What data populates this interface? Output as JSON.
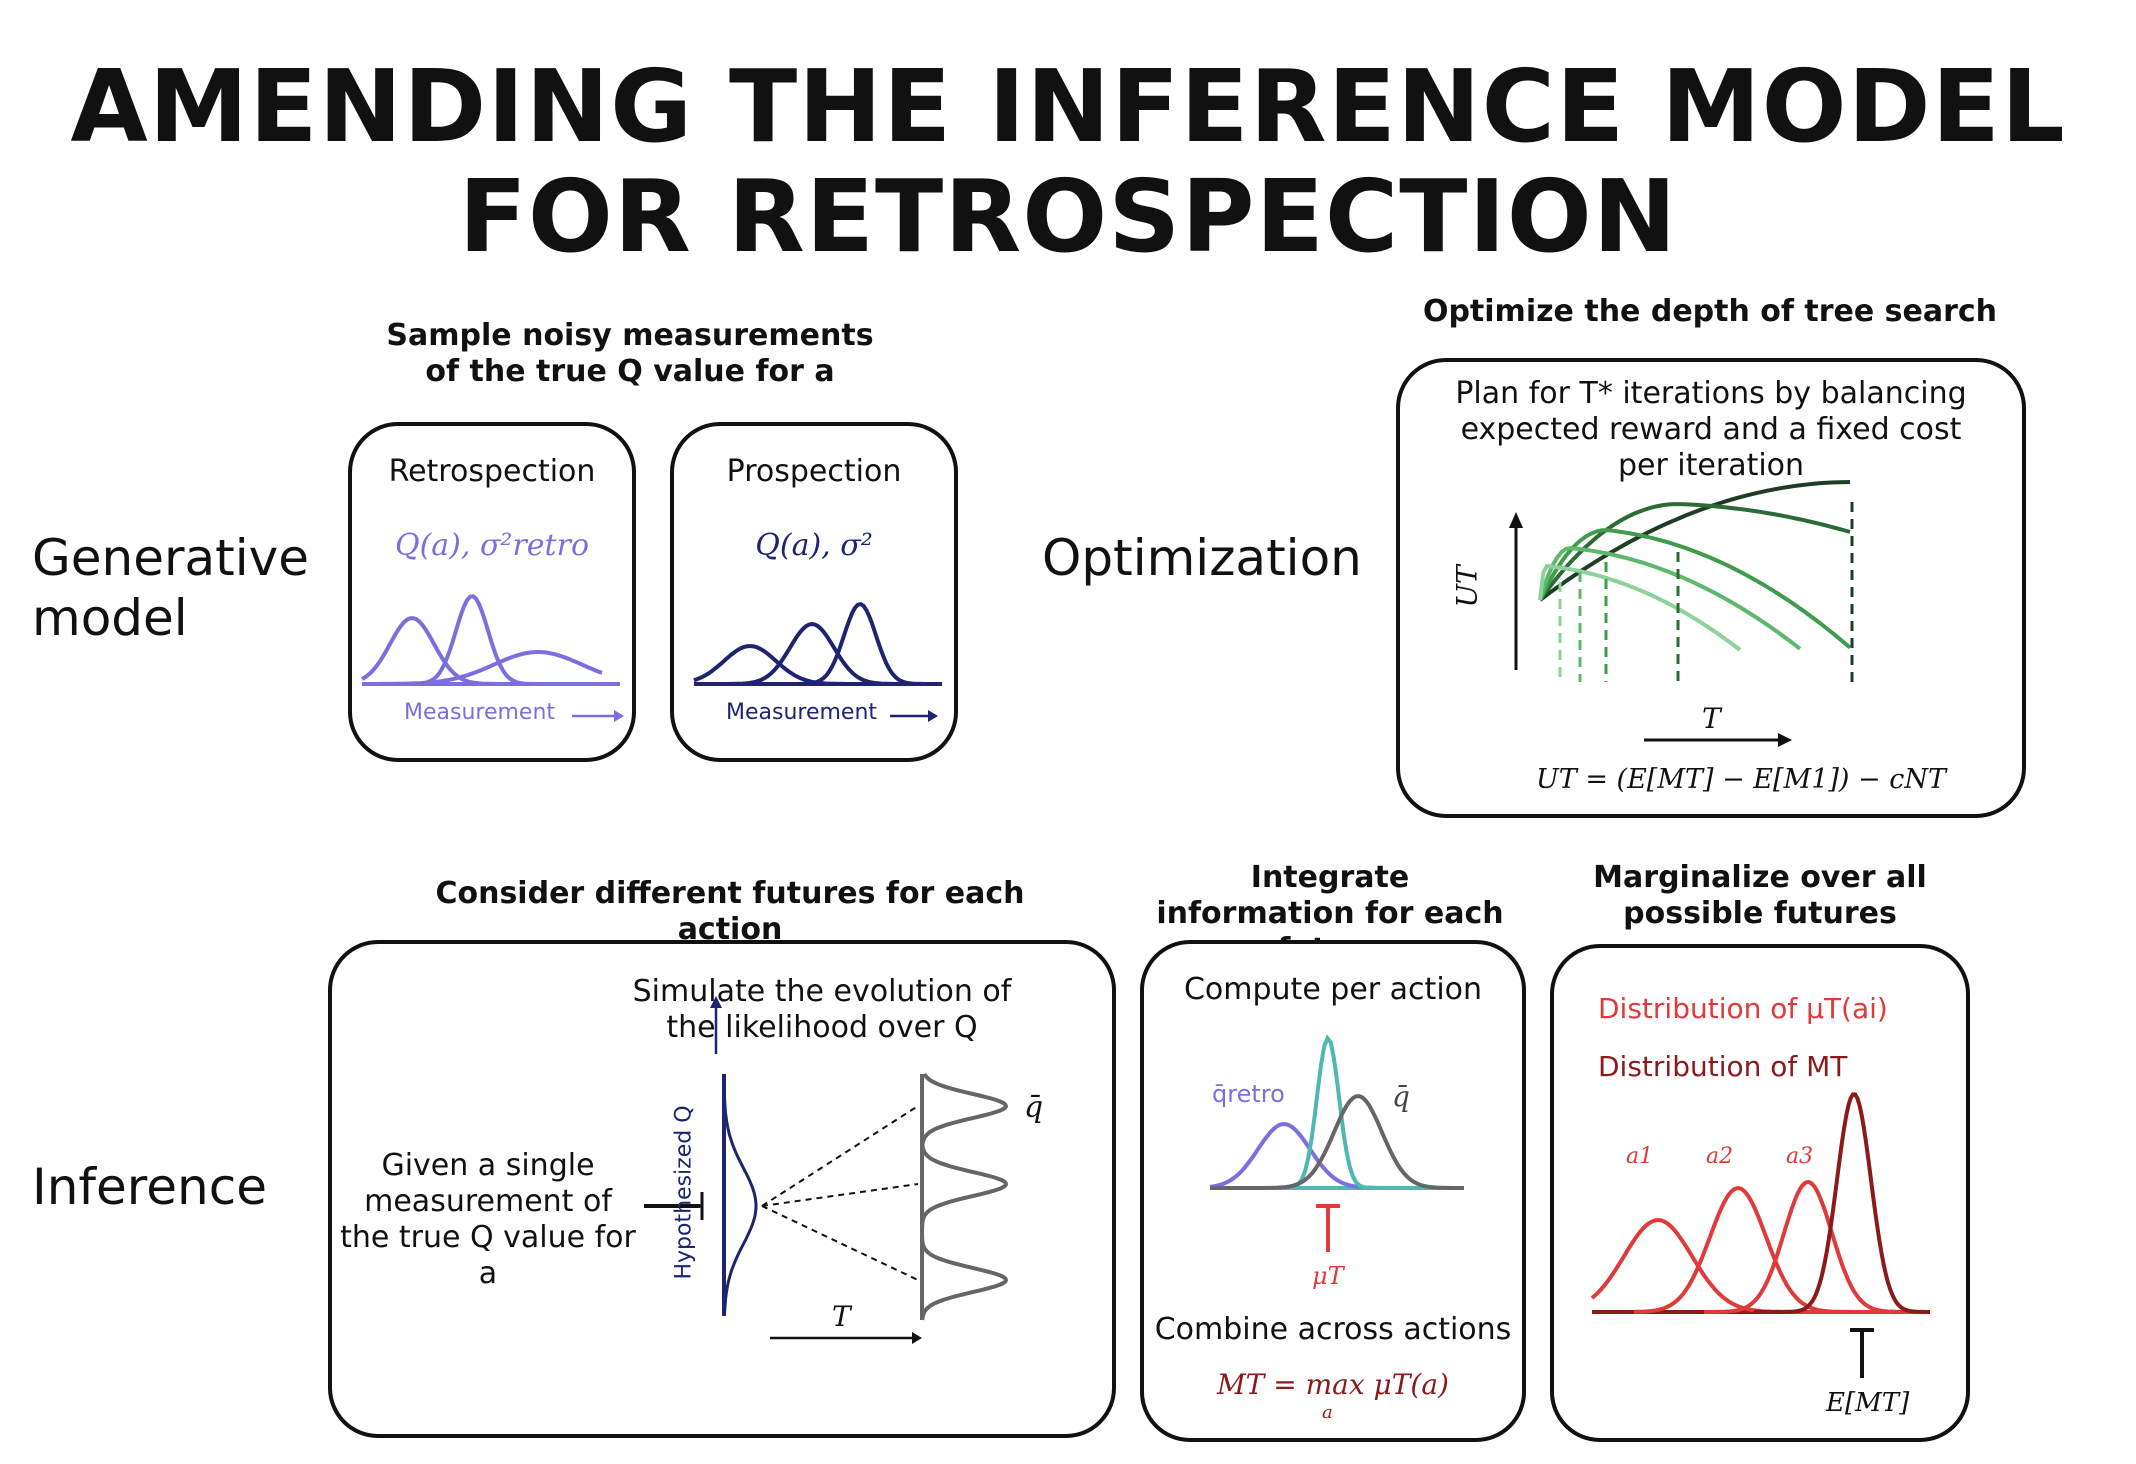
{
  "title": "AMENDING THE INFERENCE MODEL FOR RETROSPECTION",
  "row_labels": {
    "generative": "Generative model",
    "optimization": "Optimization",
    "inference": "Inference"
  },
  "sample_header": "Sample noisy measurements of the true Q value for a",
  "retrospection": {
    "label": "Retrospection",
    "formula": "Q(a), σ²retro",
    "axis": "Measurement",
    "color": "#7b6fe0"
  },
  "prospection": {
    "label": "Prospection",
    "formula": "Q(a), σ²",
    "axis": "Measurement",
    "color": "#1d2470"
  },
  "optimize": {
    "header": "Optimize the depth of tree search",
    "text": "Plan for T* iterations by balancing expected reward and a fixed cost per iteration",
    "y_axis": "UT",
    "x_axis": "T",
    "equation": "UT = (E[MT] − E[M1]) − cNT",
    "colors": [
      "#1e3d24",
      "#2b6b35",
      "#3e9c4c",
      "#5cb86a",
      "#8fd19a"
    ]
  },
  "futures": {
    "header": "Consider different futures for each action",
    "simulate": "Simulate the evolution of the likelihood over Q",
    "given": "Given a single measurement of the true Q value for a",
    "y_axis": "Hypothesized Q",
    "x_axis": "T",
    "qbar": "q̄"
  },
  "integrate": {
    "header": "Integrate information for each future",
    "compute": "Compute per action",
    "qretro": "q̄retro",
    "qbar": "q̄",
    "mu": "μT",
    "combine": "Combine across actions",
    "equation": "MT = max μT(a)",
    "eq_sub": "a",
    "colors": {
      "retro": "#7b6fe0",
      "teal": "#4fb8b0",
      "gray": "#666666",
      "red": "#e03a3a",
      "dark_red": "#8b1a1a"
    }
  },
  "marginalize": {
    "header": "Marginalize over all possible futures",
    "dist_mu": "Distribution of μT(ai)",
    "dist_M": "Distribution of MT",
    "actions": [
      "a1",
      "a2",
      "a3"
    ],
    "expect": "E[MT]",
    "colors": {
      "mu": "#e03a3a",
      "M": "#8b1a1a"
    }
  }
}
